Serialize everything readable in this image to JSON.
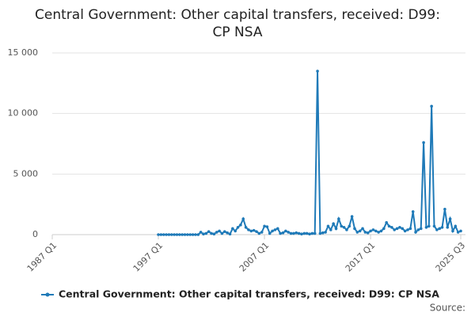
{
  "chart_data": {
    "type": "line",
    "title": [
      "Central Government: Other capital transfers, received: D99:",
      "CP NSA"
    ],
    "categories": [
      "1987 Q1",
      null,
      null,
      null,
      null,
      null,
      null,
      null,
      null,
      null,
      null,
      null,
      null,
      null,
      null,
      null,
      null,
      null,
      null,
      null,
      null,
      null,
      null,
      null,
      null,
      null,
      null,
      null,
      null,
      null,
      null,
      null,
      null,
      null,
      null,
      null,
      null,
      null,
      null,
      null,
      "1997 Q1",
      null,
      null,
      null,
      null,
      null,
      null,
      null,
      null,
      null,
      null,
      null,
      null,
      null,
      null,
      null,
      null,
      null,
      null,
      null,
      null,
      null,
      null,
      null,
      null,
      null,
      null,
      null,
      null,
      null,
      null,
      null,
      null,
      null,
      null,
      null,
      null,
      null,
      null,
      null,
      "2007 Q1",
      null,
      null,
      null,
      null,
      null,
      null,
      null,
      null,
      null,
      null,
      null,
      null,
      null,
      null,
      null,
      null,
      null,
      null,
      null,
      null,
      null,
      null,
      null,
      null,
      null,
      null,
      null,
      null,
      null,
      null,
      null,
      null,
      null,
      null,
      null,
      null,
      null,
      null,
      null,
      "2017 Q1",
      null,
      null,
      null,
      null,
      null,
      null,
      null,
      null,
      null,
      null,
      null,
      null,
      null,
      null,
      null,
      null,
      null,
      null,
      null,
      null,
      null,
      null,
      null,
      null,
      null,
      null,
      null,
      null,
      null,
      null,
      null,
      null,
      null,
      "2025 Q3"
    ],
    "series": [
      {
        "name": "Central Government: Other capital transfers, received: D99: CP NSA",
        "color": "#1f7ab8",
        "values": [
          null,
          null,
          null,
          null,
          null,
          null,
          null,
          null,
          null,
          null,
          null,
          null,
          null,
          null,
          null,
          null,
          null,
          null,
          null,
          null,
          null,
          null,
          null,
          null,
          null,
          null,
          null,
          null,
          null,
          null,
          null,
          null,
          null,
          null,
          null,
          null,
          null,
          null,
          null,
          null,
          0,
          0,
          0,
          0,
          0,
          0,
          0,
          0,
          0,
          0,
          0,
          0,
          0,
          0,
          0,
          0,
          200,
          50,
          100,
          250,
          100,
          50,
          200,
          300,
          100,
          250,
          150,
          50,
          500,
          300,
          600,
          800,
          1300,
          600,
          400,
          300,
          350,
          250,
          100,
          200,
          700,
          650,
          100,
          300,
          400,
          500,
          100,
          150,
          300,
          200,
          100,
          100,
          150,
          100,
          50,
          100,
          100,
          50,
          100,
          100,
          13500,
          100,
          150,
          200,
          700,
          400,
          900,
          500,
          1300,
          700,
          600,
          400,
          700,
          1500,
          500,
          200,
          300,
          500,
          200,
          150,
          300,
          400,
          300,
          200,
          300,
          500,
          1000,
          700,
          600,
          400,
          500,
          600,
          500,
          300,
          400,
          500,
          1900,
          200,
          400,
          500,
          7600,
          600,
          700,
          10600,
          700,
          400,
          500,
          600,
          2100,
          600,
          1300,
          300,
          700,
          200,
          300
        ]
      }
    ],
    "ylim": [
      0,
      15000
    ],
    "yticks": [
      0,
      {
        "value": 5000,
        "label": "5 000"
      },
      {
        "value": 10000,
        "label": "10 000"
      },
      {
        "value": 15000,
        "label": "15 000"
      }
    ],
    "grid": true,
    "source": "Source:"
  }
}
